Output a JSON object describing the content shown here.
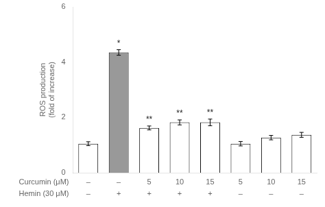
{
  "chart_data": {
    "type": "bar",
    "categories": [
      [
        "–",
        "–"
      ],
      [
        "–",
        "+"
      ],
      [
        "5",
        "+"
      ],
      [
        "10",
        "+"
      ],
      [
        "15",
        "+"
      ],
      [
        "5",
        "–"
      ],
      [
        "10",
        "–"
      ],
      [
        "15",
        "–"
      ]
    ],
    "row_labels": [
      "Curcumin (μM)",
      "Hemin (30 μM)"
    ],
    "values": [
      1.05,
      4.35,
      1.62,
      1.82,
      1.82,
      1.05,
      1.27,
      1.37
    ],
    "errors": [
      0.07,
      0.1,
      0.07,
      0.09,
      0.12,
      0.08,
      0.08,
      0.09
    ],
    "significance": [
      null,
      "*",
      "**",
      "**",
      "**",
      null,
      null,
      null
    ],
    "colors": [
      "white",
      "#999999",
      "white",
      "white",
      "white",
      "white",
      "white",
      "white"
    ],
    "ylabel": "ROS production\n(fold of increase)",
    "ylim": [
      0,
      6
    ],
    "yticks": [
      0,
      2,
      4,
      6
    ],
    "grid": false
  }
}
